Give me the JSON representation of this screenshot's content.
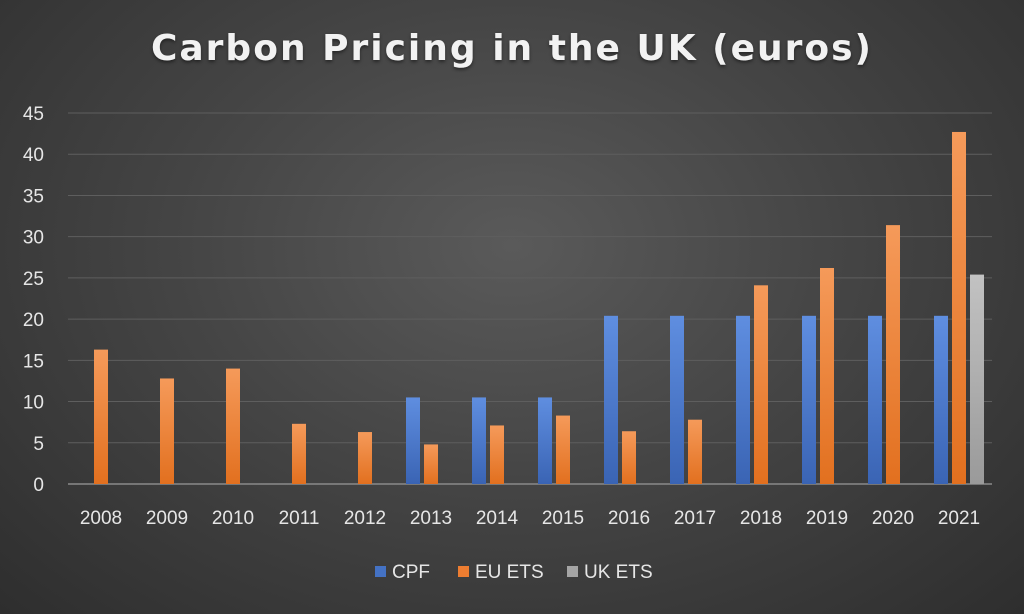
{
  "chart_data": {
    "type": "bar",
    "title": "Carbon Pricing in the UK (euros)",
    "xlabel": "",
    "ylabel": "",
    "categories": [
      "2008",
      "2009",
      "2010",
      "2011",
      "2012",
      "2013",
      "2014",
      "2015",
      "2016",
      "2017",
      "2018",
      "2019",
      "2020",
      "2021"
    ],
    "ylim": [
      0,
      45
    ],
    "yticks": [
      0,
      5,
      10,
      15,
      20,
      25,
      30,
      35,
      40,
      45
    ],
    "grid": true,
    "legend_position": "bottom",
    "series": [
      {
        "name": "CPF",
        "color": "#4472C4",
        "values": [
          null,
          null,
          null,
          null,
          null,
          10.5,
          10.5,
          10.5,
          20.4,
          20.4,
          20.4,
          20.4,
          20.4,
          20.4
        ]
      },
      {
        "name": "EU ETS",
        "color": "#ED7D31",
        "values": [
          16.3,
          12.8,
          14.0,
          7.3,
          6.3,
          4.8,
          7.1,
          8.3,
          6.4,
          7.8,
          24.1,
          26.2,
          31.4,
          42.7
        ]
      },
      {
        "name": "UK ETS",
        "color": "#A5A5A5",
        "values": [
          null,
          null,
          null,
          null,
          null,
          null,
          null,
          null,
          null,
          null,
          null,
          null,
          null,
          25.4
        ]
      }
    ]
  }
}
